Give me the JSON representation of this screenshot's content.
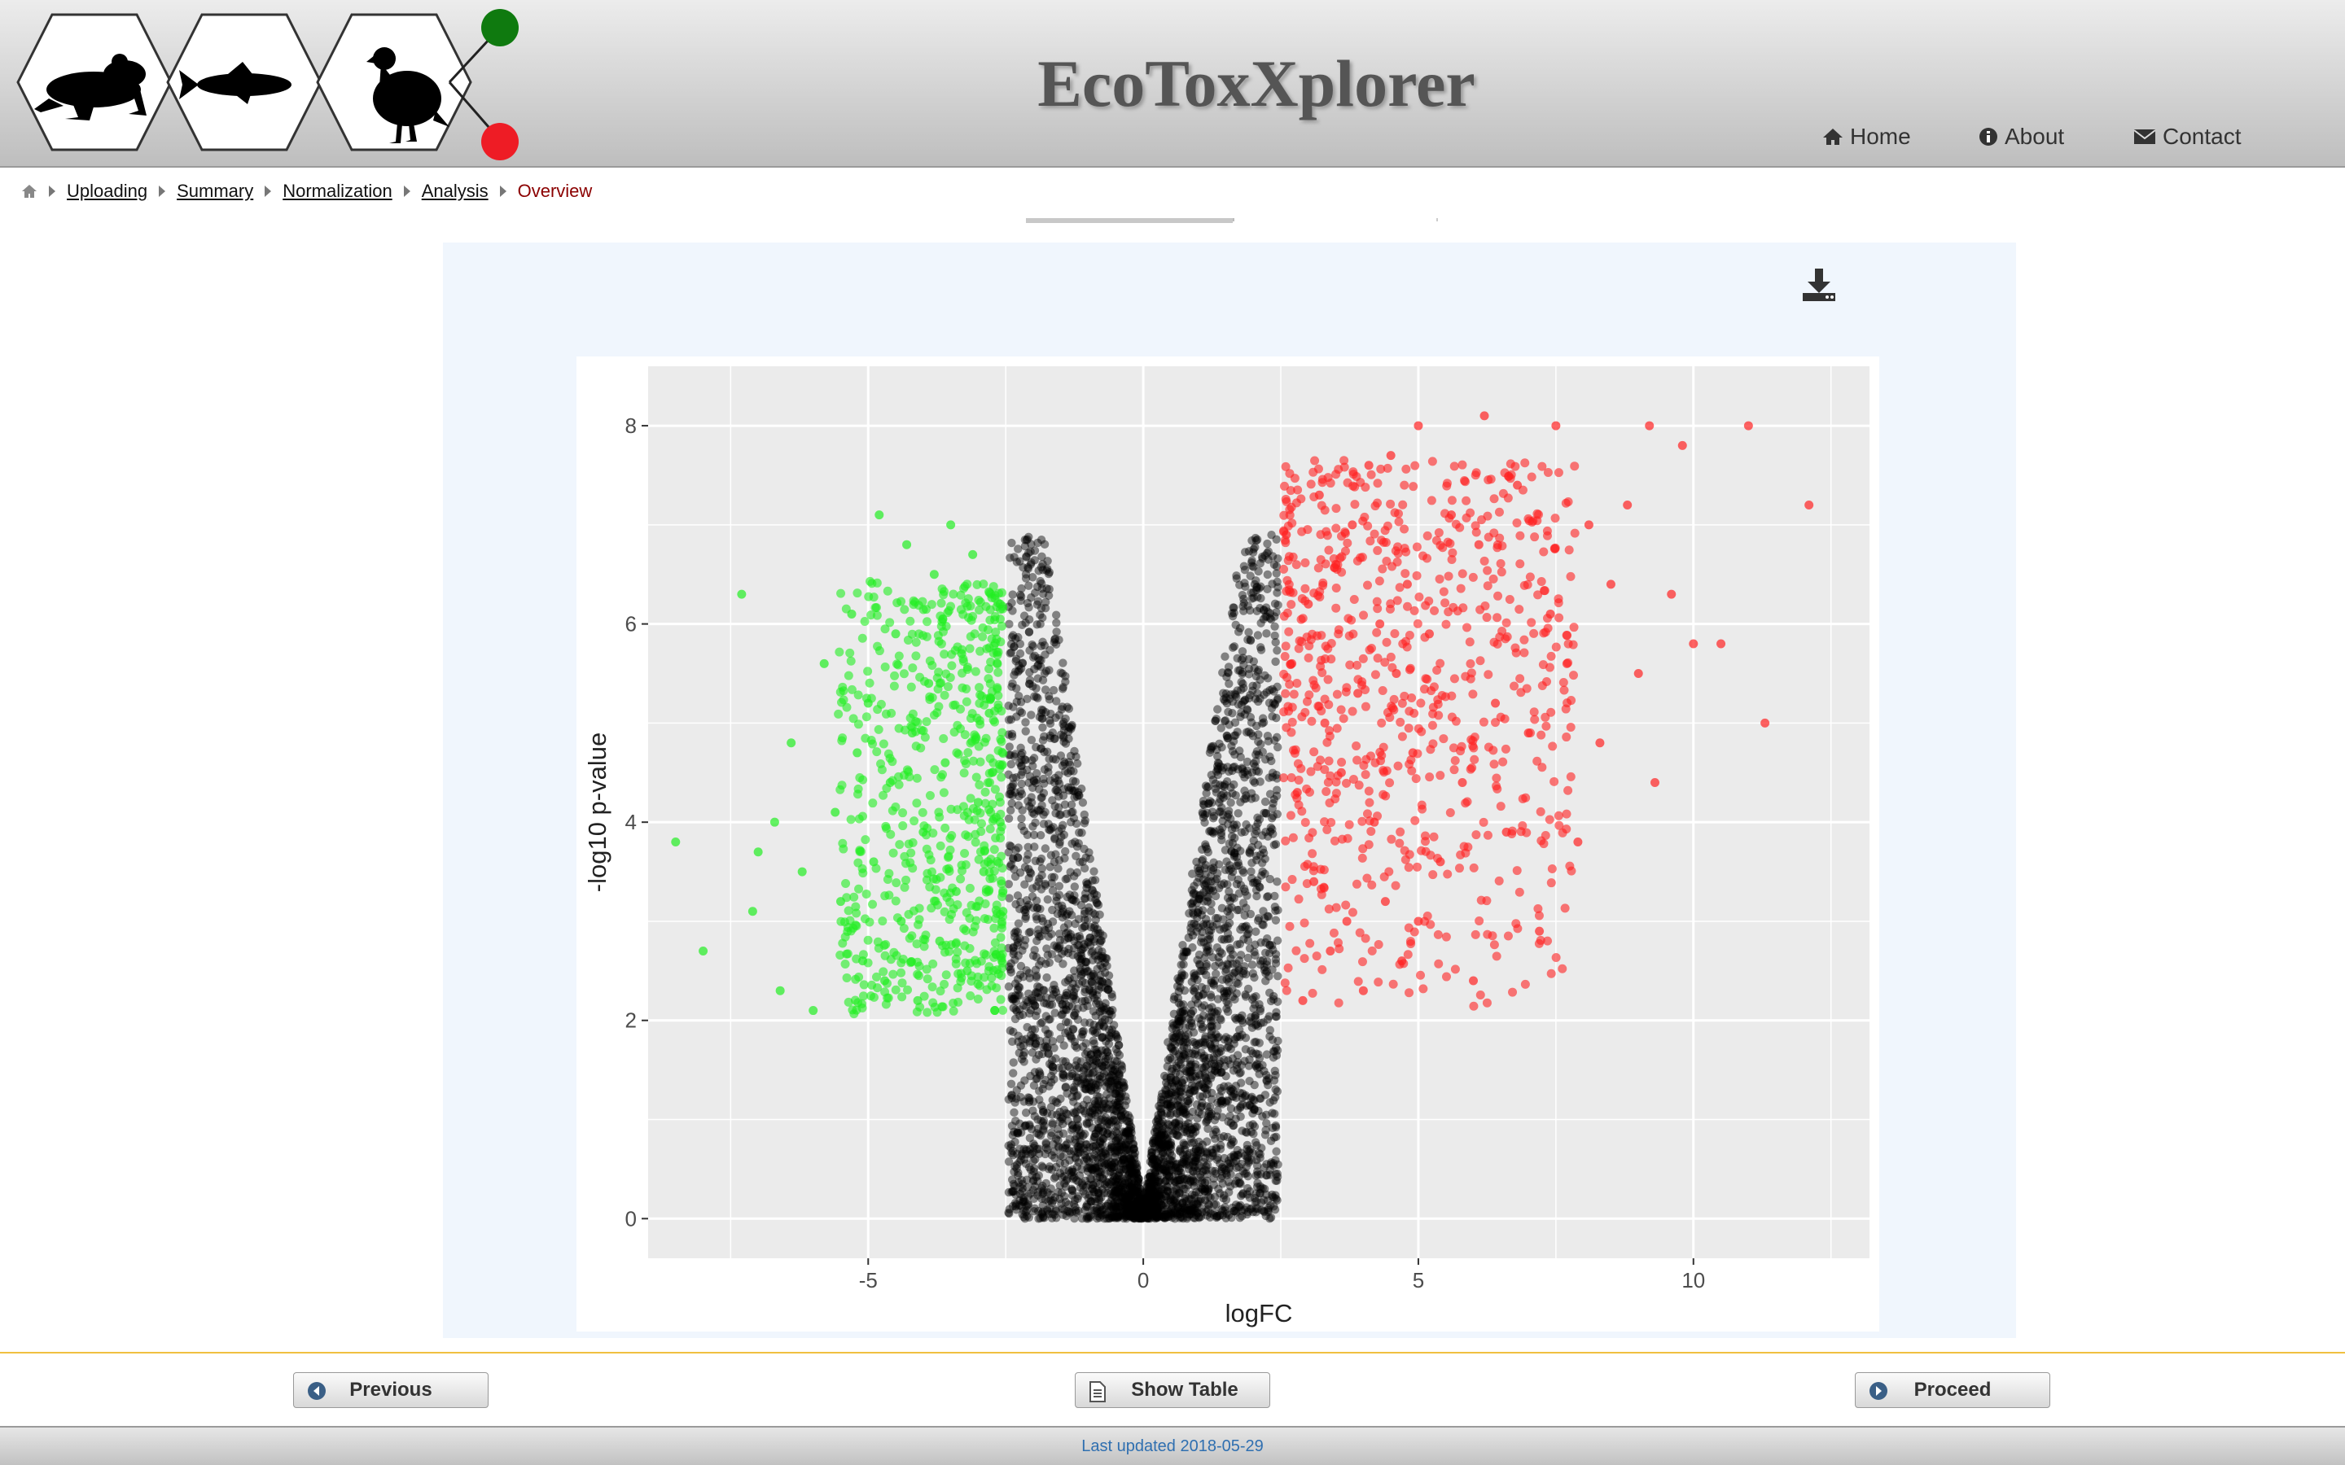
{
  "header": {
    "title": "EcoToxXplorer",
    "logo_icons": [
      "frog-icon",
      "fish-icon",
      "bird-icon"
    ],
    "nav": [
      {
        "label": "Home",
        "icon": "home-icon"
      },
      {
        "label": "About",
        "icon": "info-icon"
      },
      {
        "label": "Contact",
        "icon": "envelope-icon"
      }
    ]
  },
  "breadcrumb": {
    "home_icon": "home-icon",
    "items": [
      "Uploading",
      "Summary",
      "Normalization",
      "Analysis"
    ],
    "current": "Overview"
  },
  "panel": {
    "download_icon": "download-icon"
  },
  "chart_data": {
    "type": "scatter",
    "title": "",
    "xlabel": "logFC",
    "ylabel": "-log10 p-value",
    "xlim": [
      -9,
      13.2
    ],
    "ylim": [
      -0.4,
      8.6
    ],
    "x_ticks": [
      -5,
      0,
      5,
      10
    ],
    "y_ticks": [
      0,
      2,
      4,
      6,
      8
    ],
    "grid": true,
    "legend": "none",
    "colors": {
      "down": "#22ee22",
      "up": "#ff2222",
      "ns": "#000000",
      "panel": "#ebebeb"
    },
    "thresholds": {
      "logFC": 2.5,
      "neg_log10_p": 2
    },
    "series": [
      {
        "class": "down",
        "points": [
          [
            -8.5,
            3.8
          ],
          [
            -8.0,
            2.7
          ],
          [
            -7.3,
            6.3
          ],
          [
            -7.1,
            3.1
          ],
          [
            -7.0,
            3.7
          ],
          [
            -6.7,
            4.0
          ],
          [
            -6.6,
            2.3
          ],
          [
            -6.4,
            4.8
          ],
          [
            -6.2,
            3.5
          ],
          [
            -6.0,
            2.1
          ],
          [
            -5.8,
            5.6
          ],
          [
            -5.6,
            4.1
          ],
          [
            -5.5,
            3.2
          ],
          [
            -5.3,
            6.1
          ],
          [
            -5.2,
            4.7
          ],
          [
            -5.1,
            2.6
          ],
          [
            -5.0,
            5.2
          ],
          [
            -4.9,
            3.6
          ],
          [
            -4.8,
            7.1
          ],
          [
            -4.7,
            2.4
          ],
          [
            -4.6,
            4.4
          ],
          [
            -4.5,
            5.9
          ],
          [
            -4.4,
            3.0
          ],
          [
            -4.3,
            6.8
          ],
          [
            -4.2,
            4.9
          ],
          [
            -4.1,
            2.2
          ],
          [
            -4.0,
            3.9
          ],
          [
            -3.9,
            5.4
          ],
          [
            -3.8,
            6.5
          ],
          [
            -3.7,
            2.8
          ],
          [
            -3.6,
            4.6
          ],
          [
            -3.5,
            7.0
          ],
          [
            -3.4,
            3.3
          ],
          [
            -3.3,
            5.7
          ],
          [
            -3.2,
            2.5
          ],
          [
            -3.1,
            6.7
          ],
          [
            -3.0,
            4.2
          ],
          [
            -2.9,
            3.5
          ],
          [
            -2.8,
            5.1
          ],
          [
            -2.7,
            2.1
          ],
          [
            -2.6,
            6.2
          ],
          [
            -2.6,
            4.0
          ],
          [
            -2.55,
            3.1
          ]
        ]
      },
      {
        "class": "up",
        "points": [
          [
            2.6,
            6.9
          ],
          [
            2.7,
            5.6
          ],
          [
            2.8,
            4.3
          ],
          [
            2.9,
            2.2
          ],
          [
            3.0,
            6.2
          ],
          [
            3.1,
            3.4
          ],
          [
            3.2,
            7.3
          ],
          [
            3.3,
            5.0
          ],
          [
            3.4,
            2.7
          ],
          [
            3.5,
            6.6
          ],
          [
            3.6,
            4.5
          ],
          [
            3.7,
            3.0
          ],
          [
            3.8,
            7.0
          ],
          [
            3.9,
            5.3
          ],
          [
            4.0,
            2.3
          ],
          [
            4.1,
            7.6
          ],
          [
            4.2,
            4.0
          ],
          [
            4.3,
            6.0
          ],
          [
            4.4,
            3.2
          ],
          [
            4.5,
            7.7
          ],
          [
            4.6,
            5.5
          ],
          [
            4.7,
            2.6
          ],
          [
            4.8,
            6.4
          ],
          [
            4.9,
            4.7
          ],
          [
            5.0,
            3.0
          ],
          [
            5.0,
            8.0
          ],
          [
            5.2,
            5.9
          ],
          [
            5.4,
            3.6
          ],
          [
            5.6,
            7.1
          ],
          [
            5.8,
            4.4
          ],
          [
            6.0,
            2.4
          ],
          [
            6.1,
            6.8
          ],
          [
            6.2,
            8.1
          ],
          [
            6.4,
            5.2
          ],
          [
            6.6,
            3.9
          ],
          [
            6.8,
            7.4
          ],
          [
            7.0,
            4.9
          ],
          [
            7.2,
            2.9
          ],
          [
            7.4,
            6.1
          ],
          [
            7.5,
            8.0
          ],
          [
            7.7,
            5.6
          ],
          [
            7.9,
            3.8
          ],
          [
            8.1,
            7.0
          ],
          [
            8.3,
            4.8
          ],
          [
            8.5,
            6.4
          ],
          [
            8.8,
            7.2
          ],
          [
            9.0,
            5.5
          ],
          [
            9.2,
            8.0
          ],
          [
            9.3,
            4.4
          ],
          [
            9.6,
            6.3
          ],
          [
            9.8,
            7.8
          ],
          [
            10.0,
            5.8
          ],
          [
            10.5,
            5.8
          ],
          [
            11.0,
            8.0
          ],
          [
            11.3,
            5.0
          ],
          [
            12.1,
            7.2
          ]
        ]
      }
    ]
  },
  "buttons": {
    "previous": "Previous",
    "show_table": "Show Table",
    "proceed": "Proceed"
  },
  "footer": {
    "text": "Last updated 2018-05-29"
  }
}
